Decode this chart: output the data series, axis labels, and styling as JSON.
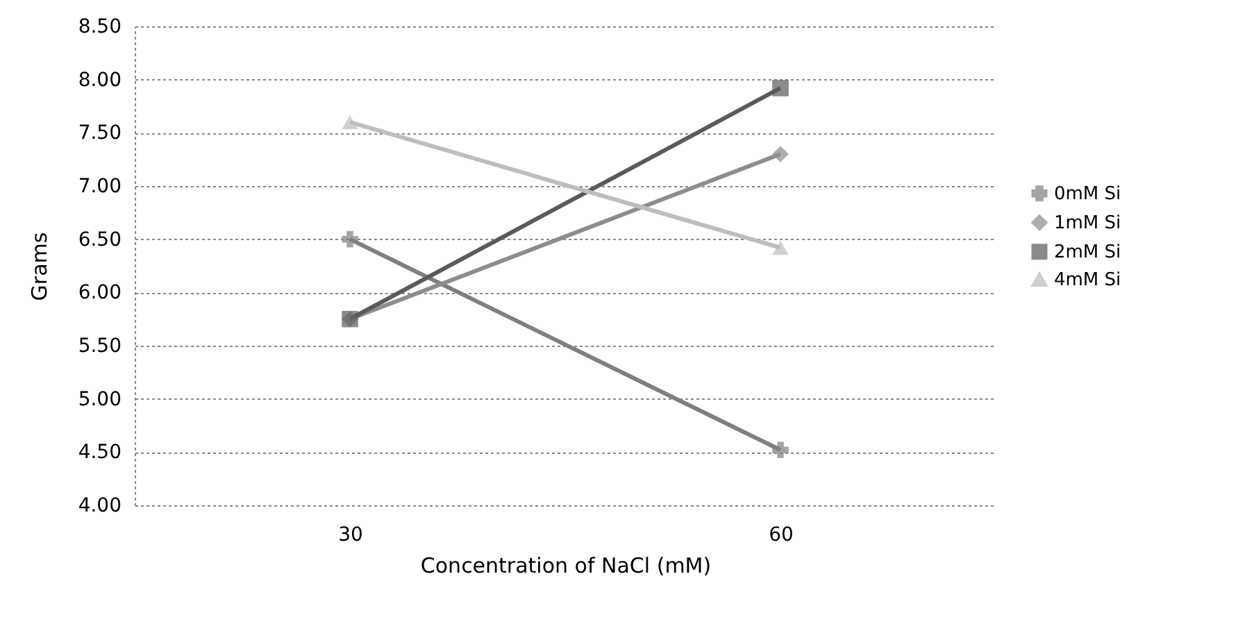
{
  "chart_data": {
    "type": "line",
    "xlabel": "Concentration of NaCl (mM)",
    "ylabel": "Grams",
    "categories": [
      "30",
      "60"
    ],
    "series": [
      {
        "name": "0mM Si",
        "color": "#7f7f7f",
        "marker": "cross",
        "values": [
          6.5,
          4.52
        ]
      },
      {
        "name": "1mM Si",
        "color": "#8c8c8c",
        "marker": "diamond",
        "values": [
          5.75,
          7.3
        ]
      },
      {
        "name": "2mM Si",
        "color": "#5a5a5a",
        "marker": "square",
        "values": [
          5.75,
          7.92
        ]
      },
      {
        "name": "4mM Si",
        "color": "#bdbdbd",
        "marker": "triangle",
        "values": [
          7.6,
          6.42
        ]
      }
    ],
    "ylim": [
      4,
      8.5
    ],
    "yticks": [
      {
        "value": 4,
        "label": "4.00"
      },
      {
        "value": 4.5,
        "label": "4.50"
      },
      {
        "value": 5,
        "label": "5.00"
      },
      {
        "value": 5.5,
        "label": "5.50"
      },
      {
        "value": 6,
        "label": "6.00"
      },
      {
        "value": 6.5,
        "label": "6.50"
      },
      {
        "value": 7,
        "label": "7.00"
      },
      {
        "value": 7.5,
        "label": "7.50"
      },
      {
        "value": 8,
        "label": "8.00"
      },
      {
        "value": 8.5,
        "label": "8.50"
      }
    ],
    "grid": "y",
    "legend": "right",
    "line_style": "solid"
  }
}
